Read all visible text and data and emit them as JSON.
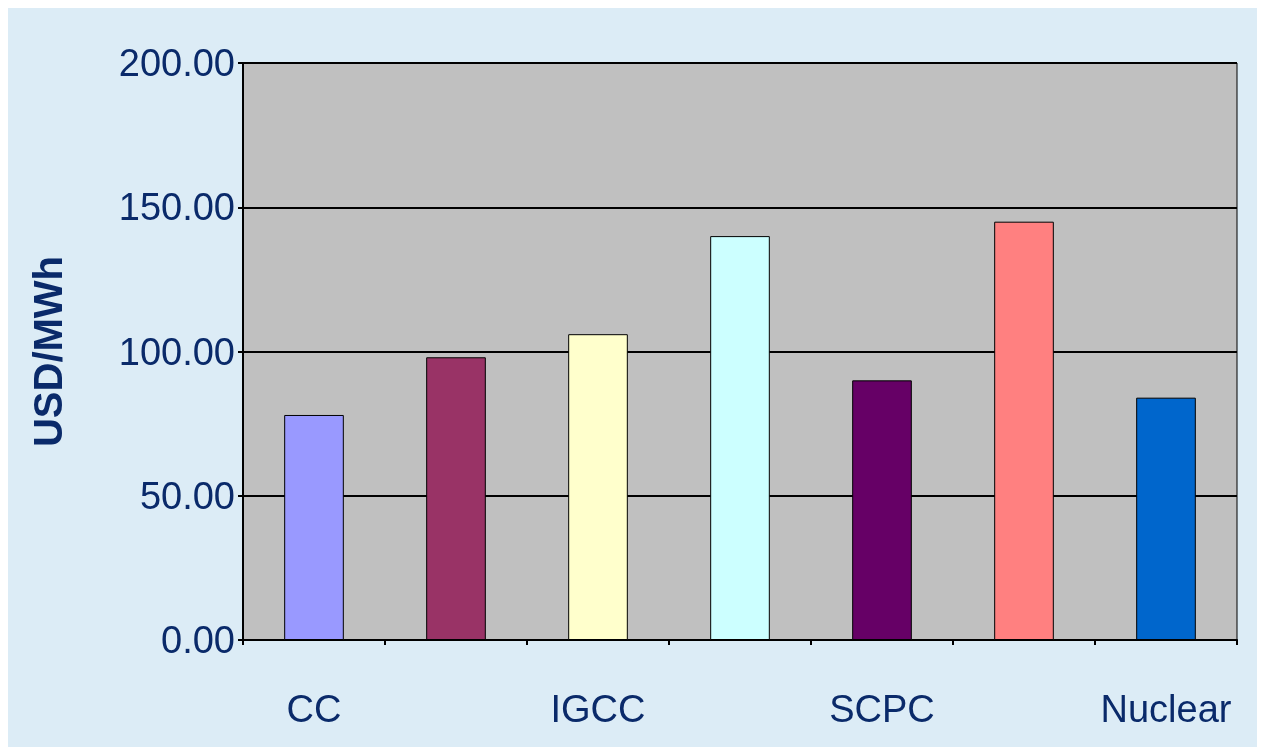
{
  "chart_data": {
    "type": "bar",
    "ylabel": "USD/MWh",
    "categories": [
      "CC",
      null,
      "IGCC",
      null,
      "SCPC",
      null,
      "Nuclear"
    ],
    "values": [
      78,
      98,
      106,
      140,
      90,
      145,
      84
    ],
    "colors": [
      "#9999ff",
      "#993366",
      "#ffffcc",
      "#ccffff",
      "#660066",
      "#ff8080",
      "#0066cc"
    ],
    "ylim": [
      0,
      200
    ],
    "yticks": [
      {
        "value": 0,
        "label": "0.00"
      },
      {
        "value": 50,
        "label": "50.00"
      },
      {
        "value": 100,
        "label": "100.00"
      },
      {
        "value": 150,
        "label": "150.00"
      },
      {
        "value": 200,
        "label": "200.00"
      }
    ],
    "grid": "y"
  }
}
